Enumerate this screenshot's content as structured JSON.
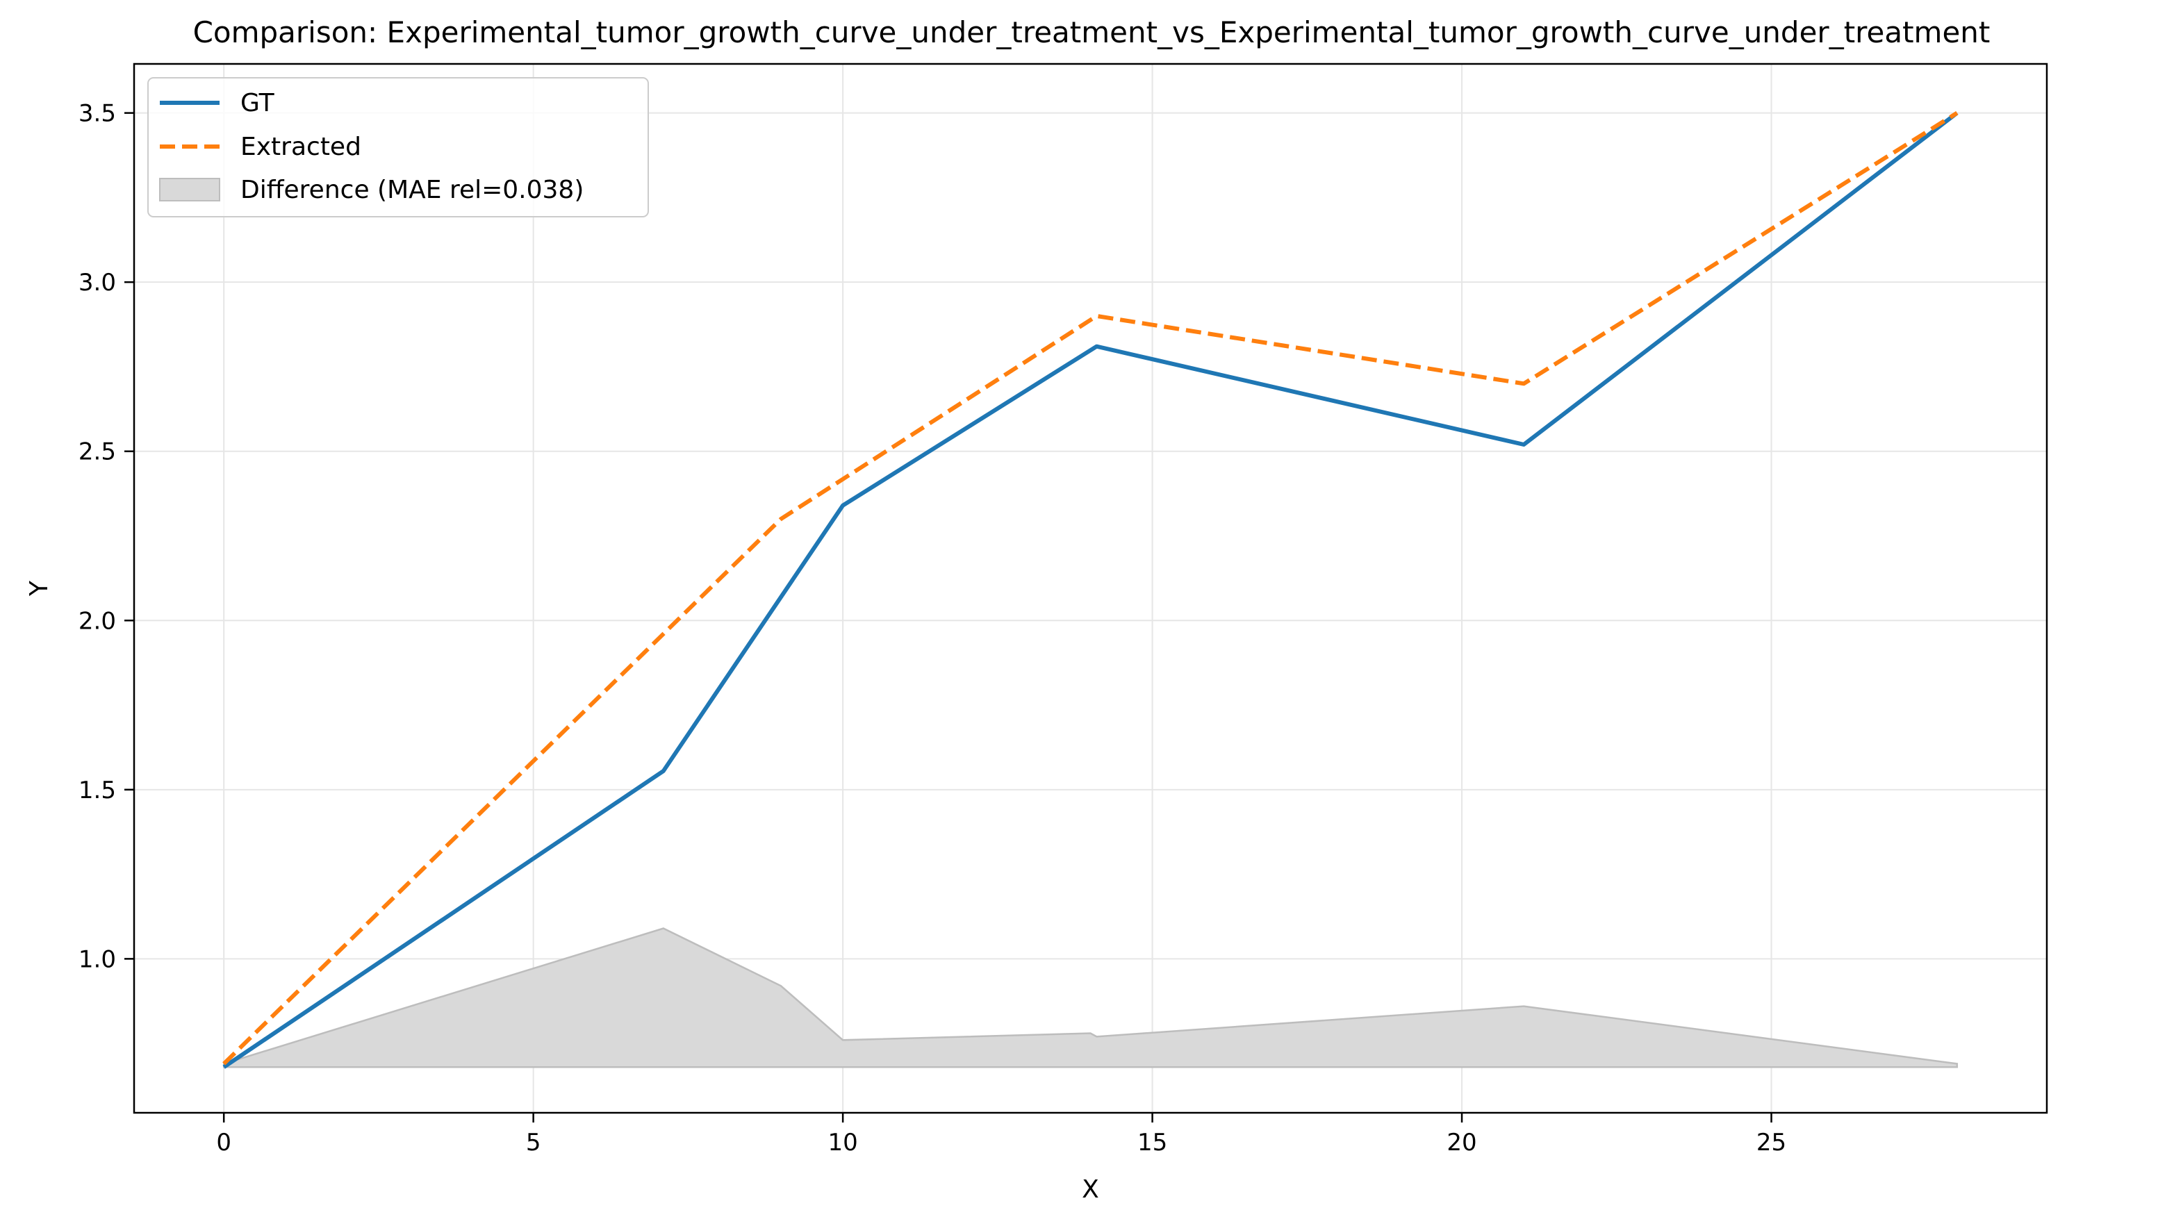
{
  "chart_data": {
    "type": "line",
    "title": "Comparison: Experimental_tumor_growth_curve_under_treatment_vs_Experimental_tumor_growth_curve_under_treatment",
    "xlabel": "X",
    "ylabel": "Y",
    "xlim": [
      -1.45,
      29.45
    ],
    "ylim": [
      0.545,
      3.645
    ],
    "xticks": [
      0,
      5,
      10,
      15,
      20,
      25
    ],
    "yticks": [
      1.0,
      1.5,
      2.0,
      2.5,
      3.0,
      3.5
    ],
    "grid": true,
    "legend_position": "upper left",
    "series": [
      {
        "name": "GT",
        "style": "solid",
        "color": "#1f77b4",
        "x": [
          0,
          7.1,
          10,
          14.1,
          21,
          28
        ],
        "y": [
          0.68,
          1.555,
          2.34,
          2.81,
          2.52,
          3.5
        ]
      },
      {
        "name": "Extracted",
        "style": "dashed",
        "color": "#ff7f0e",
        "x": [
          0,
          9,
          14.1,
          21,
          28
        ],
        "y": [
          0.69,
          2.3,
          2.9,
          2.7,
          3.5
        ]
      }
    ],
    "difference": {
      "name": "Difference (MAE rel=0.038)",
      "color": "#d9d9d9",
      "edge_color": "#bdbdbd",
      "baseline": 0.68,
      "x": [
        0,
        7.1,
        9,
        10,
        14,
        14.1,
        21,
        28
      ],
      "y": [
        0.69,
        1.09,
        0.92,
        0.76,
        0.78,
        0.77,
        0.86,
        0.69
      ]
    }
  }
}
